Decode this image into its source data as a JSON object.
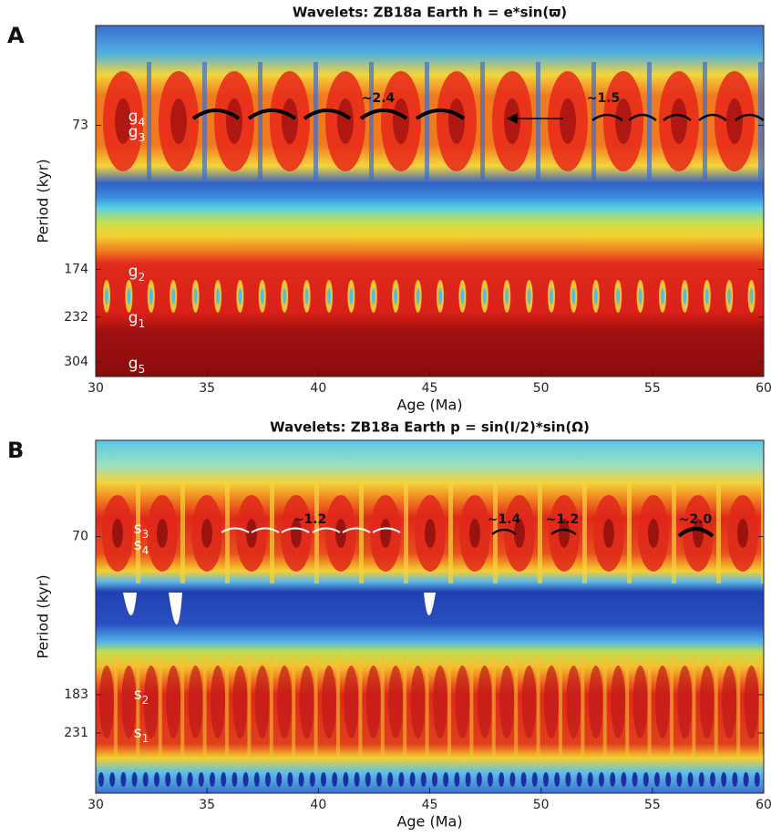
{
  "chart_data": [
    {
      "type": "contour",
      "panel": "A",
      "title": "Wavelets: ZB18a Earth h = e*sin(ϖ)",
      "x_label": "Age (Ma)",
      "y_label": "Period (kyr)",
      "xlim": [
        30,
        60
      ],
      "xticks": [
        30,
        35,
        40,
        45,
        50,
        55,
        60
      ],
      "ylim": [
        40,
        332
      ],
      "yscale": "log",
      "yticks": [
        73,
        174,
        232,
        304
      ],
      "mode_labels": [
        {
          "name": "g",
          "sub": "4"
        },
        {
          "name": "g",
          "sub": "3"
        },
        {
          "name": "g",
          "sub": "2"
        },
        {
          "name": "g",
          "sub": "1"
        },
        {
          "name": "g",
          "sub": "5"
        }
      ],
      "annotations": [
        "~2.4",
        "~1.5"
      ]
    },
    {
      "type": "contour",
      "panel": "B",
      "title": "Wavelets: ZB18a Earth p = sin(I/2)*sin(Ω)",
      "x_label": "Age (Ma)",
      "y_label": "Period (kyr)",
      "xlim": [
        30,
        60
      ],
      "xticks": [
        30,
        35,
        40,
        45,
        50,
        55,
        60
      ],
      "ylim": [
        39,
        333
      ],
      "yscale": "log",
      "yticks": [
        70,
        183,
        231
      ],
      "mode_labels": [
        {
          "name": "s",
          "sub": "3"
        },
        {
          "name": "s",
          "sub": "4"
        },
        {
          "name": "s",
          "sub": "2"
        },
        {
          "name": "s",
          "sub": "1"
        }
      ],
      "annotations": [
        "~1.2",
        "~1.4",
        "~1.2",
        "~2.0"
      ]
    }
  ]
}
